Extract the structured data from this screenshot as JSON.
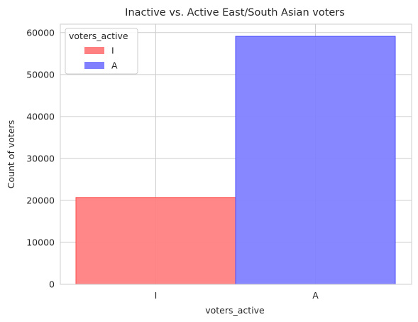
{
  "chart_data": {
    "type": "bar",
    "title": "Inactive vs. Active East/South Asian voters",
    "xlabel": "voters_active",
    "ylabel": "Count of voters",
    "categories": [
      "I",
      "A"
    ],
    "values": [
      20700,
      59100
    ],
    "colors": [
      "#ff8080",
      "#8080ff"
    ],
    "edge_colors": [
      "#ff4d4d",
      "#4d4dff"
    ],
    "ylim": [
      0,
      62000
    ],
    "yticks": [
      0,
      10000,
      20000,
      30000,
      40000,
      50000,
      60000
    ],
    "grid": true,
    "legend": {
      "title": "voters_active",
      "placement": "top-left",
      "entries": [
        "I",
        "A"
      ]
    }
  }
}
